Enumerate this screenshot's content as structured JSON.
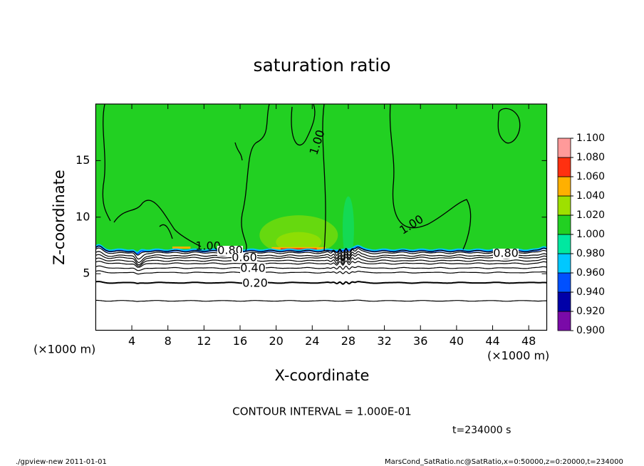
{
  "chart_data": {
    "type": "contour",
    "title": "saturation ratio",
    "x_label": "X-coordinate",
    "y_label": "Z-coordinate",
    "x_unit": "(×1000 m)",
    "y_unit": "(×1000 m)",
    "xlim": [
      0,
      50
    ],
    "ylim": [
      0,
      20
    ],
    "xticks": [
      4,
      8,
      12,
      16,
      20,
      24,
      28,
      32,
      36,
      40,
      44,
      48
    ],
    "yticks": [
      5,
      10,
      15
    ],
    "colorbar": {
      "levels": [
        {
          "value": 0.9,
          "label": "0.900"
        },
        {
          "value": 0.92,
          "label": "0.920"
        },
        {
          "value": 0.94,
          "label": "0.940"
        },
        {
          "value": 0.96,
          "label": "0.960"
        },
        {
          "value": 0.98,
          "label": "0.980"
        },
        {
          "value": 1.0,
          "label": "1.000"
        },
        {
          "value": 1.02,
          "label": "1.020"
        },
        {
          "value": 1.04,
          "label": "1.040"
        },
        {
          "value": 1.06,
          "label": "1.060"
        },
        {
          "value": 1.08,
          "label": "1.080"
        },
        {
          "value": 1.1,
          "label": "1.100"
        }
      ],
      "colors": [
        "#7a0aa8",
        "#0000a8",
        "#0050ff",
        "#00c8ff",
        "#00e8a0",
        "#22d022",
        "#9ee000",
        "#ffb000",
        "#ff3010",
        "#ff9a9a"
      ]
    },
    "contours": [
      {
        "value": 1.0,
        "label": "1.00"
      },
      {
        "value": 0.8,
        "label": "0.80"
      },
      {
        "value": 0.6,
        "label": "0.60"
      },
      {
        "value": 0.4,
        "label": "0.40"
      },
      {
        "value": 0.2,
        "label": "0.20"
      }
    ],
    "unlabeled_contours": [
      0.9,
      0.7,
      0.5,
      0.3,
      0.1
    ],
    "annotation": "CONTOUR INTERVAL = 1.000E-01",
    "time_label": "t=234000 s",
    "footer_left": "./gpview-new  2011-01-01",
    "footer_right": "MarsCond_SatRatio.nc@SatRatio,x=0:50000,z=0:20000,t=234000"
  }
}
